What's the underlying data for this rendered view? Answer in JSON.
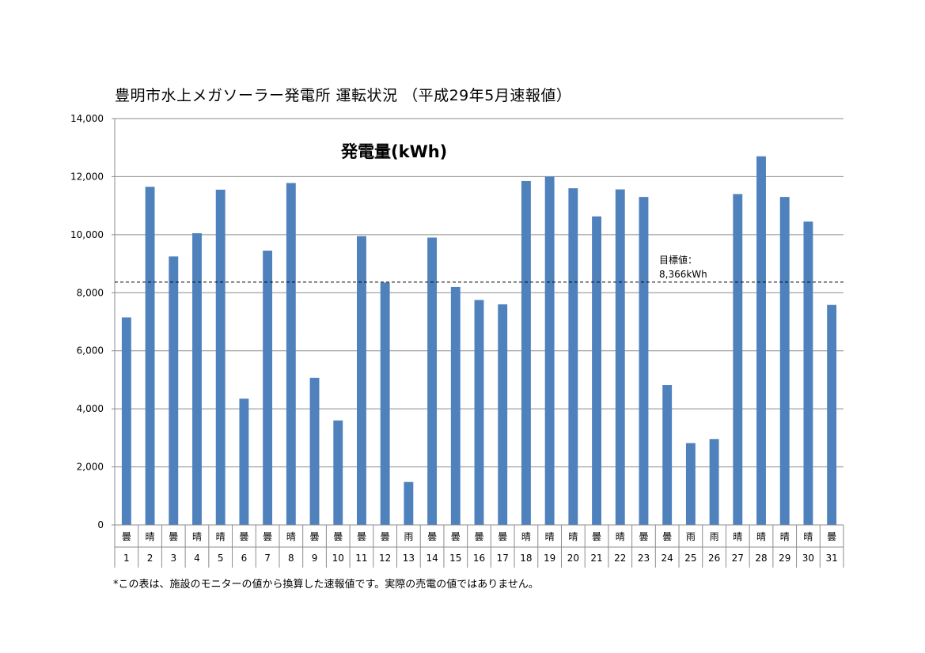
{
  "chart_data": {
    "type": "bar",
    "title": "豊明市水上メガソーラー発電所 運転状況 （平成29年5月速報値）",
    "subtitle": "発電量(kWh)",
    "categories": [
      "1",
      "2",
      "3",
      "4",
      "5",
      "6",
      "7",
      "8",
      "9",
      "10",
      "11",
      "12",
      "13",
      "14",
      "15",
      "16",
      "17",
      "18",
      "19",
      "20",
      "21",
      "22",
      "23",
      "24",
      "25",
      "26",
      "27",
      "28",
      "29",
      "30",
      "31"
    ],
    "weather": [
      "曇",
      "晴",
      "曇",
      "晴",
      "晴",
      "曇",
      "曇",
      "晴",
      "曇",
      "曇",
      "曇",
      "曇",
      "雨",
      "曇",
      "曇",
      "曇",
      "曇",
      "晴",
      "晴",
      "晴",
      "曇",
      "晴",
      "曇",
      "曇",
      "雨",
      "雨",
      "晴",
      "晴",
      "晴",
      "晴",
      "曇"
    ],
    "values": [
      7150,
      11650,
      9250,
      10050,
      11550,
      4350,
      9450,
      11780,
      5070,
      3600,
      9950,
      8350,
      1480,
      9900,
      8200,
      7750,
      7600,
      11850,
      12000,
      11600,
      10630,
      11560,
      11300,
      4820,
      2820,
      2960,
      11400,
      12700,
      11300,
      10450,
      7580
    ],
    "ylim": [
      0,
      14000
    ],
    "yticks": [
      0,
      2000,
      4000,
      6000,
      8000,
      10000,
      12000,
      14000
    ],
    "ytick_labels": [
      "0",
      "2,000",
      "4,000",
      "6,000",
      "8,000",
      "10,000",
      "12,000",
      "14,000"
    ],
    "target": {
      "value": 8366,
      "label_line1": "目標値：",
      "label_line2": "8,366kWh"
    },
    "bar_color": "#4f81bd",
    "grid": true,
    "legend": "none",
    "note": "*この表は、施設のモニターの値から換算した速報値です。実際の売電の値ではありません。"
  }
}
